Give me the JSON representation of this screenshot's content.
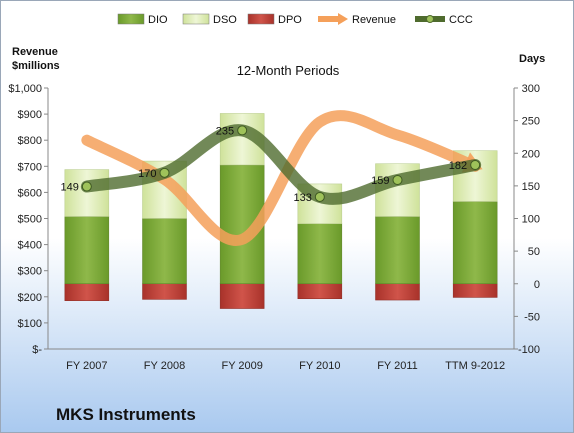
{
  "company": "MKS Instruments",
  "chart_data": {
    "type": "bar",
    "title": "12-Month Periods",
    "categories": [
      "FY 2007",
      "FY 2008",
      "FY 2009",
      "FY 2010",
      "FY 2011",
      "TTM 9-2012"
    ],
    "left_axis": {
      "label_lines": [
        "Revenue",
        "$millions"
      ],
      "ticks": [
        "$-",
        "$100",
        "$200",
        "$300",
        "$400",
        "$500",
        "$600",
        "$700",
        "$800",
        "$900",
        "$1,000"
      ],
      "range": [
        0,
        1000
      ]
    },
    "right_axis": {
      "label": "Days",
      "ticks": [
        "-100",
        "-50",
        "0",
        "50",
        "100",
        "150",
        "200",
        "250",
        "300"
      ],
      "range": [
        -100,
        300
      ]
    },
    "legend": {
      "placement": "top",
      "items": [
        {
          "name": "DIO",
          "kind": "bar",
          "color": "#7ea535"
        },
        {
          "name": "DSO",
          "kind": "bar",
          "color": "#d6e8a8"
        },
        {
          "name": "DPO",
          "kind": "bar",
          "color": "#c0392b"
        },
        {
          "name": "Revenue",
          "kind": "line",
          "color": "#f5a05a"
        },
        {
          "name": "CCC",
          "kind": "line",
          "color": "#4f6b2e"
        }
      ]
    },
    "series": [
      {
        "name": "DIO",
        "axis": "right",
        "values": [
          103,
          100,
          182,
          92,
          103,
          126
        ]
      },
      {
        "name": "DSO",
        "axis": "right",
        "values": [
          72,
          88,
          79,
          61,
          81,
          78
        ]
      },
      {
        "name": "DPO",
        "axis": "right",
        "values": [
          -26,
          -24,
          -38,
          -23,
          -25,
          -21
        ]
      },
      {
        "name": "Revenue",
        "axis": "left",
        "values": [
          800,
          650,
          420,
          870,
          820,
          700
        ]
      },
      {
        "name": "CCC",
        "axis": "right",
        "values": [
          149,
          170,
          235,
          133,
          159,
          182
        ]
      }
    ],
    "ccc_labels": [
      "149",
      "170",
      "235",
      "133",
      "159",
      "182"
    ]
  }
}
